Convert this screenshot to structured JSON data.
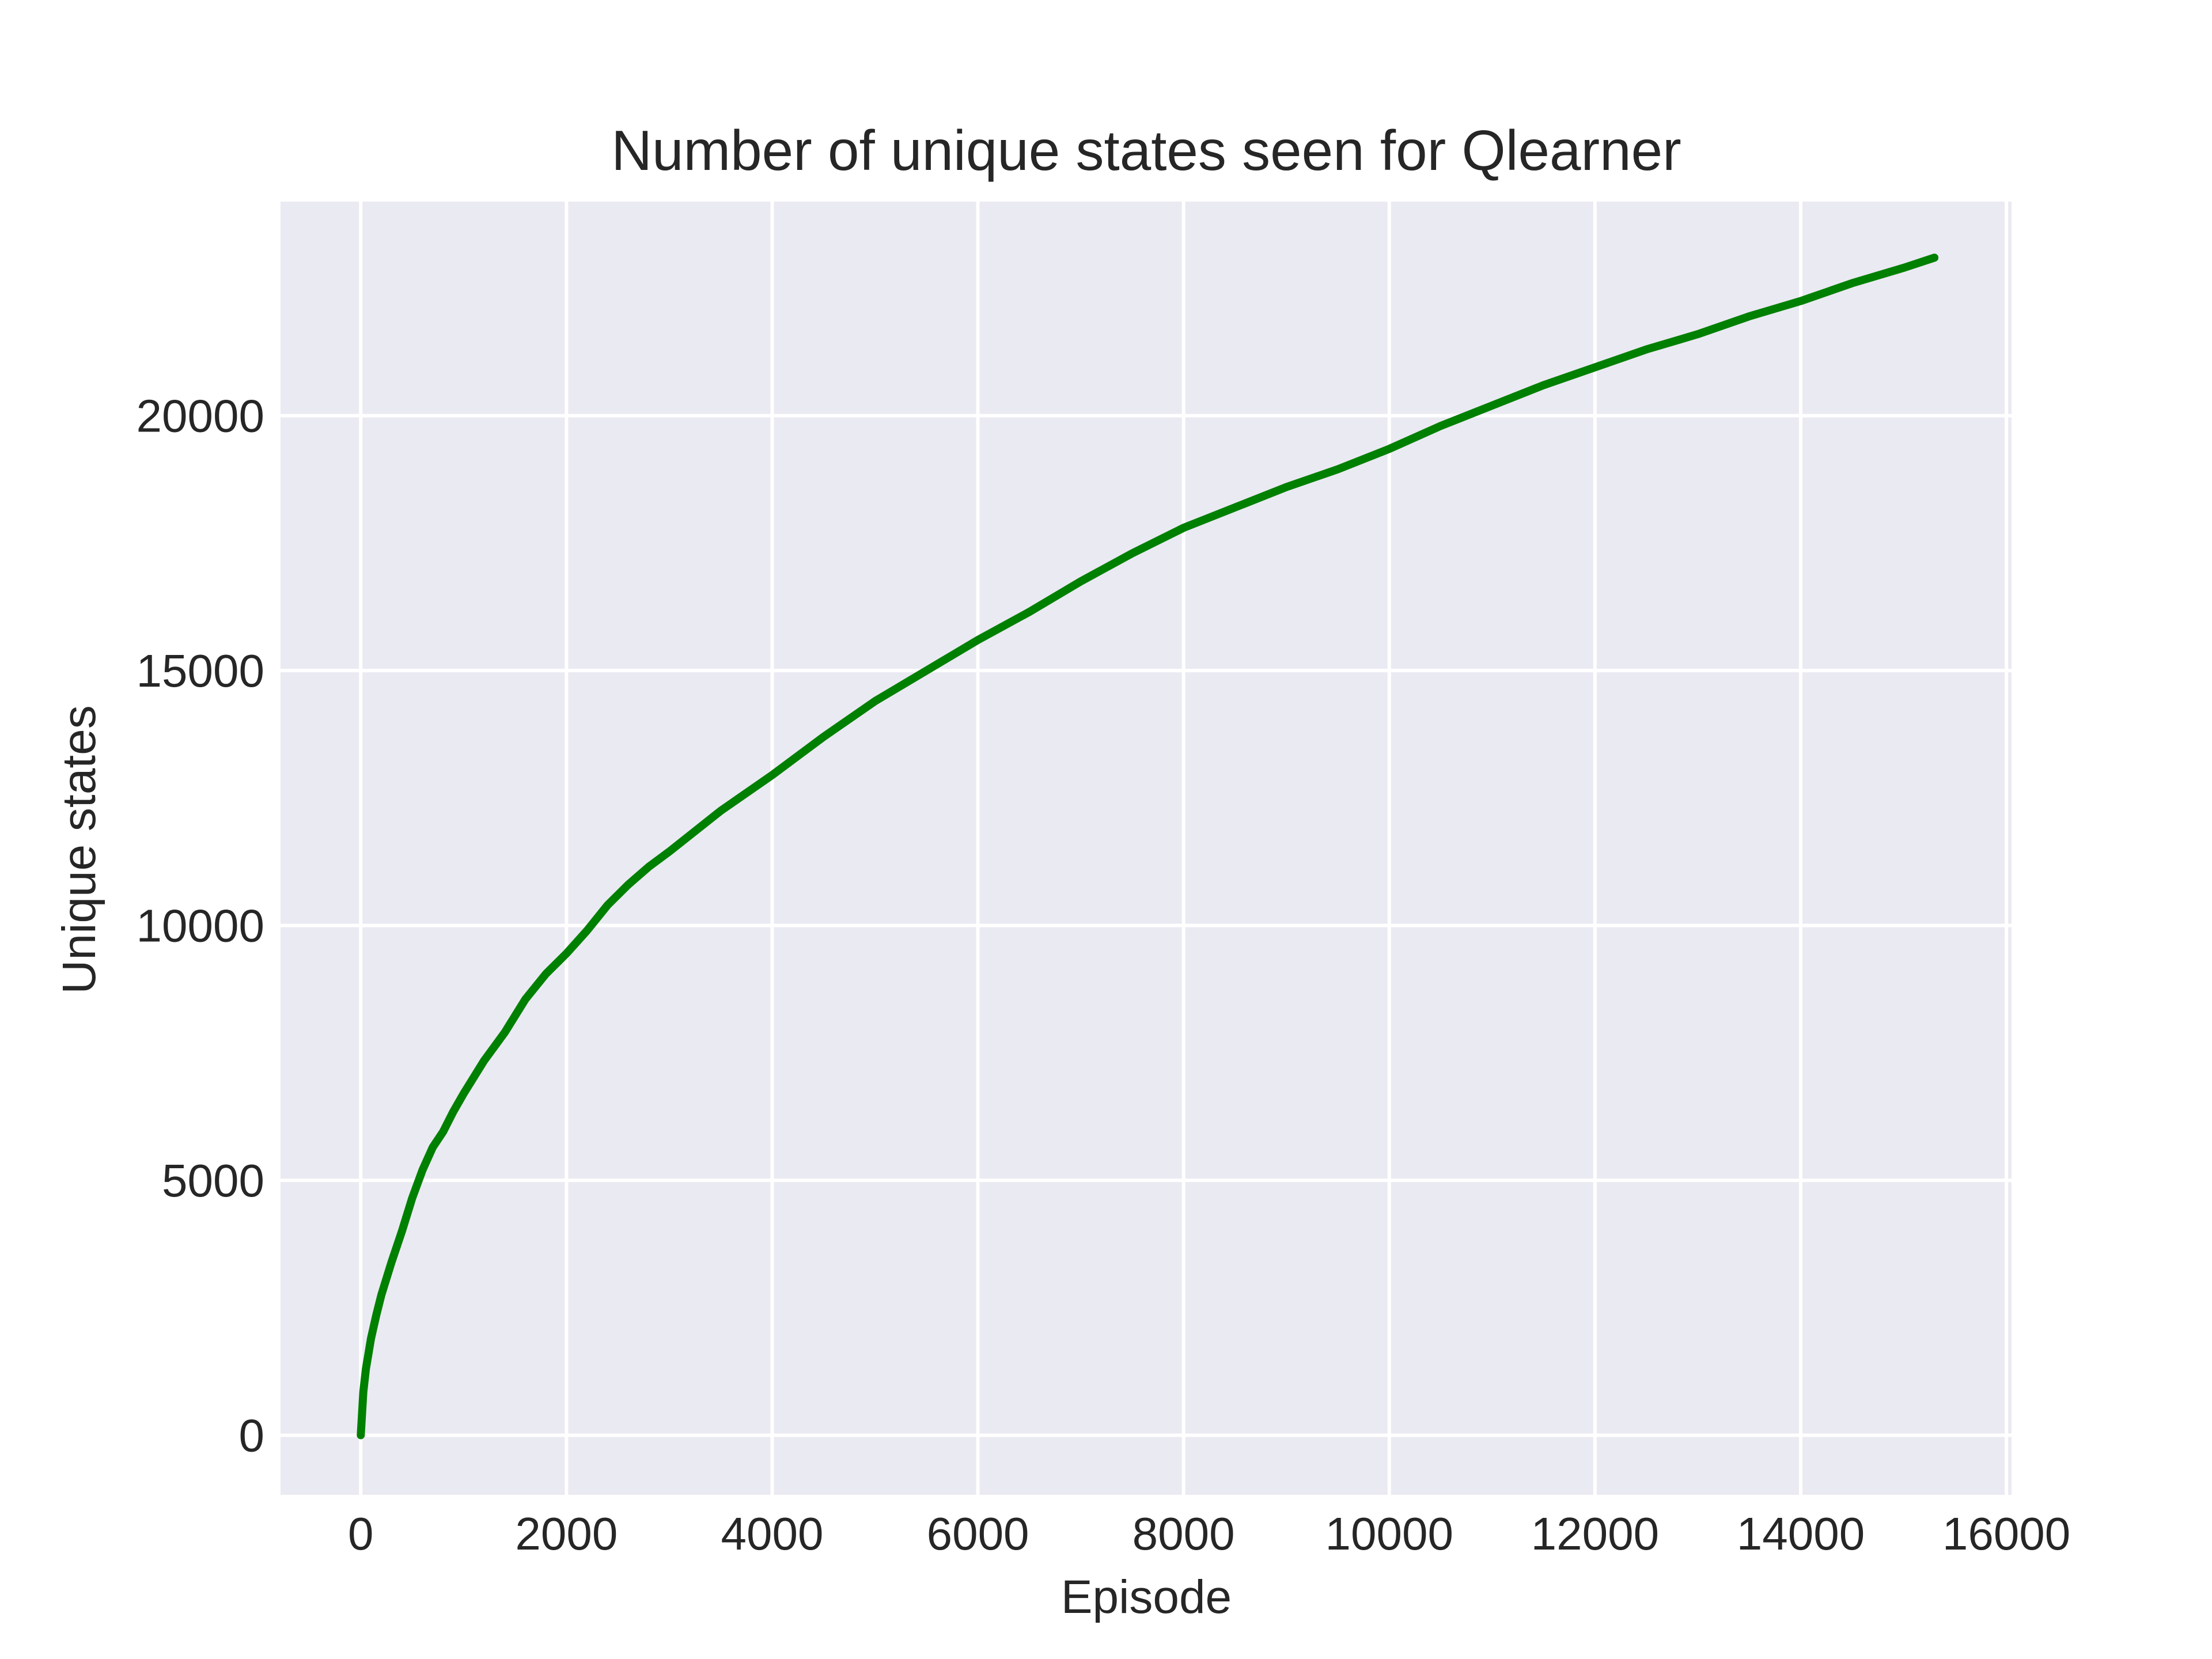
{
  "chart_data": {
    "type": "line",
    "title": "Number of unique states seen for Qlearner",
    "xlabel": "Episode",
    "ylabel": "Unique states",
    "xlim": [
      -780,
      16050
    ],
    "ylim": [
      -1170,
      24200
    ],
    "x_ticks": [
      0,
      2000,
      4000,
      6000,
      8000,
      10000,
      12000,
      14000,
      16000
    ],
    "x_tick_labels": [
      "0",
      "2000",
      "4000",
      "6000",
      "8000",
      "10000",
      "12000",
      "14000",
      "16000"
    ],
    "y_ticks": [
      0,
      5000,
      10000,
      15000,
      20000
    ],
    "y_tick_labels": [
      "0",
      "5000",
      "10000",
      "15000",
      "20000"
    ],
    "grid": true,
    "background": "#eaeaf2",
    "grid_color": "#ffffff",
    "series": [
      {
        "color": "#008000",
        "x": [
          0,
          25,
          50,
          100,
          150,
          200,
          300,
          400,
          500,
          600,
          700,
          800,
          900,
          1000,
          1200,
          1400,
          1600,
          1800,
          2000,
          2200,
          2400,
          2600,
          2800,
          3000,
          3500,
          4000,
          4500,
          5000,
          5500,
          6000,
          6500,
          7000,
          7500,
          8000,
          8500,
          9000,
          9500,
          10000,
          10500,
          11000,
          11500,
          12000,
          12500,
          13000,
          13500,
          14000,
          14500,
          15000,
          15300
        ],
        "y": [
          0,
          850,
          1300,
          1900,
          2350,
          2750,
          3400,
          4000,
          4650,
          5200,
          5650,
          5950,
          6350,
          6700,
          7350,
          7900,
          8550,
          9050,
          9450,
          9900,
          10400,
          10800,
          11150,
          11450,
          12250,
          12950,
          13700,
          14400,
          15000,
          15600,
          16150,
          16750,
          17300,
          17800,
          18200,
          18600,
          18950,
          19350,
          19800,
          20200,
          20600,
          20950,
          21300,
          21600,
          21950,
          22250,
          22600,
          22900,
          23100
        ]
      }
    ]
  }
}
